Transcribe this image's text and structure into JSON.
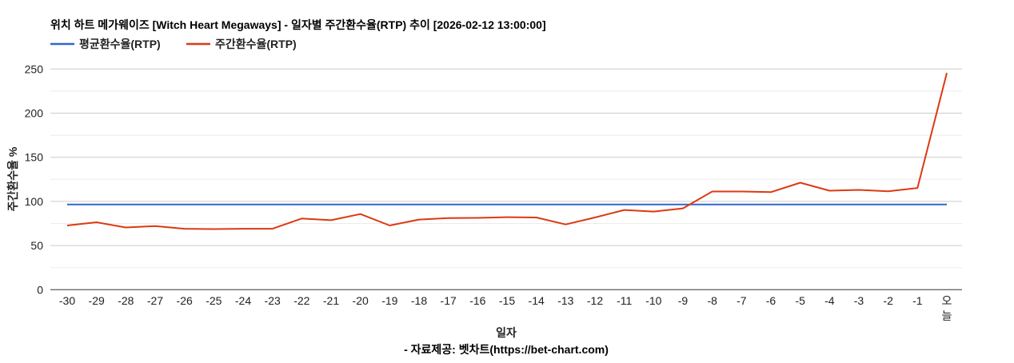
{
  "chart_data": {
    "type": "line",
    "title": "위치 하트 메가웨이즈 [Witch Heart Megaways] - 일자별 주간환수율(RTP) 추이 [2026-02-12 13:00:00]",
    "xlabel": "일자",
    "ylabel": "주간환수율 %",
    "footer": "- 자료제공: 벳차트(https://bet-chart.com)",
    "ylim": [
      0,
      250
    ],
    "yticks": [
      0,
      50,
      100,
      150,
      200,
      250
    ],
    "minor_gridlines": [
      25,
      75,
      125,
      175,
      225
    ],
    "grid": true,
    "legend_position": "top",
    "categories": [
      "-30",
      "-29",
      "-28",
      "-27",
      "-26",
      "-25",
      "-24",
      "-23",
      "-22",
      "-21",
      "-20",
      "-19",
      "-18",
      "-17",
      "-16",
      "-15",
      "-14",
      "-13",
      "-12",
      "-11",
      "-10",
      "-9",
      "-8",
      "-7",
      "-6",
      "-5",
      "-4",
      "-3",
      "-2",
      "-1",
      "오늘"
    ],
    "series": [
      {
        "name": "평균환수율(RTP)",
        "color": "#3366cc",
        "values": [
          96.5,
          96.5,
          96.5,
          96.5,
          96.5,
          96.5,
          96.5,
          96.5,
          96.5,
          96.5,
          96.5,
          96.5,
          96.5,
          96.5,
          96.5,
          96.5,
          96.5,
          96.5,
          96.5,
          96.5,
          96.5,
          96.5,
          96.5,
          96.5,
          96.5,
          96.5,
          96.5,
          96.5,
          96.5,
          96.5,
          96.5
        ]
      },
      {
        "name": "주간환수율(RTP)",
        "color": "#dc3912",
        "values": [
          72.7,
          76.4,
          70.5,
          72.0,
          69.0,
          68.7,
          69.0,
          69.0,
          80.6,
          78.7,
          85.7,
          72.7,
          79.4,
          81.2,
          81.3,
          82.2,
          81.8,
          73.9,
          81.8,
          90.3,
          88.5,
          92.1,
          111.2,
          111.2,
          110.5,
          121.2,
          112.1,
          113.0,
          111.5,
          115.2,
          245.5
        ]
      }
    ]
  }
}
